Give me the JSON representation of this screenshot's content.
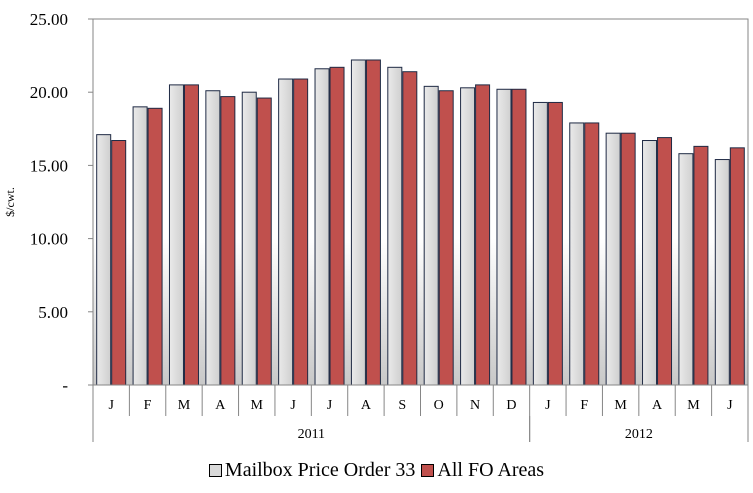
{
  "chart_data": {
    "type": "bar",
    "ylabel": "$/cwt.",
    "ylim": [
      0,
      25
    ],
    "ytick_values": [
      0,
      5,
      10,
      15,
      20,
      25
    ],
    "ytick_labels": [
      "-",
      "5.00",
      "10.00",
      "15.00",
      "20.00",
      "25.00"
    ],
    "grid": false,
    "legend_position": "bottom",
    "categories": [
      "J",
      "F",
      "M",
      "A",
      "M",
      "J",
      "J",
      "A",
      "S",
      "O",
      "N",
      "D",
      "J",
      "F",
      "M",
      "A",
      "M",
      "J"
    ],
    "groups": [
      {
        "label": "2011",
        "count": 12
      },
      {
        "label": "2012",
        "count": 6
      }
    ],
    "series": [
      {
        "name": "Mailbox Price Order 33",
        "color": "#d9d9d9",
        "values": [
          17.1,
          19.0,
          20.5,
          20.1,
          20.0,
          20.9,
          21.6,
          22.2,
          21.7,
          20.4,
          20.3,
          20.2,
          19.3,
          17.9,
          17.2,
          16.7,
          15.8,
          15.4
        ]
      },
      {
        "name": "All FO Areas",
        "color": "#c0504d",
        "values": [
          16.7,
          18.9,
          20.5,
          19.7,
          19.6,
          20.9,
          21.7,
          22.2,
          21.4,
          20.1,
          20.5,
          20.2,
          19.3,
          17.9,
          17.2,
          16.9,
          16.3,
          16.2
        ]
      }
    ]
  }
}
